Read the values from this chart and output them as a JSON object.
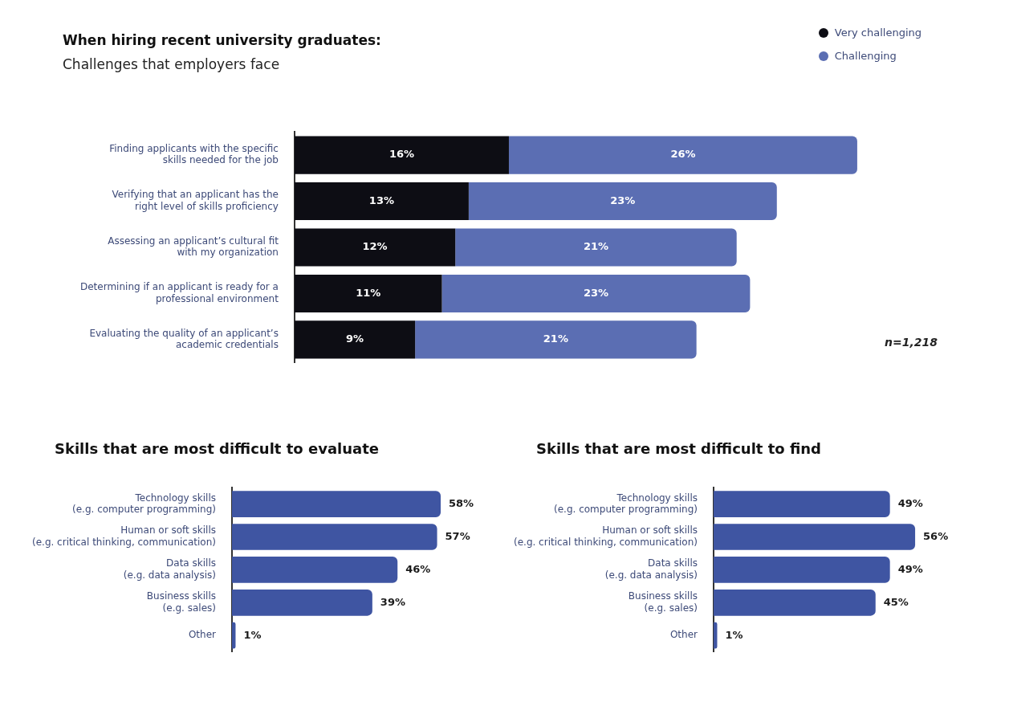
{
  "chart_data": [
    {
      "type": "bar",
      "orientation": "horizontal",
      "stacked": true,
      "title": "When hiring recent university graduates:",
      "subtitle": "Challenges that employers face",
      "categories": [
        "Finding applicants with the specific\nskills needed for the job",
        "Verifying that an applicant has the\nright level of skills proficiency",
        "Assessing an applicant’s cultural fit\nwith my organization",
        "Determining if an applicant is ready for a\nprofessional environment",
        "Evaluating the quality of an applicant’s\nacademic credentials"
      ],
      "series": [
        {
          "name": "Very challenging",
          "color": "#0d0d14",
          "values": [
            16,
            13,
            12,
            11,
            9
          ],
          "value_labels": [
            "16%",
            "13%",
            "12%",
            "11%",
            "9%"
          ]
        },
        {
          "name": "Challenging",
          "color": "#5b6eb3",
          "values": [
            26,
            23,
            21,
            23,
            21
          ],
          "value_labels": [
            "26%",
            "23%",
            "21%",
            "23%",
            "21%"
          ]
        }
      ],
      "legend": "top right",
      "tick_labels": "y",
      "annotations": [
        "n=1,218"
      ]
    },
    {
      "type": "bar",
      "orientation": "horizontal",
      "title": "Skills that are most difficult to evaluate",
      "categories": [
        "Technology skills\n(e.g. computer programming)",
        "Human or soft skills\n(e.g. critical thinking, communication)",
        "Data skills\n(e.g. data analysis)",
        "Business skills\n(e.g. sales)",
        "Other"
      ],
      "color": "#3f55a2",
      "values": [
        58,
        57,
        46,
        39,
        1
      ],
      "value_labels": [
        "58%",
        "57%",
        "46%",
        "39%",
        "1%"
      ],
      "tick_labels": "y"
    },
    {
      "type": "bar",
      "orientation": "horizontal",
      "title": "Skills that are most difficult to find",
      "categories": [
        "Technology skills\n(e.g. computer programming)",
        "Human or soft skills\n(e.g. critical thinking, communication)",
        "Data skills\n(e.g. data analysis)",
        "Business skills\n(e.g. sales)",
        "Other"
      ],
      "color": "#3f55a2",
      "values": [
        49,
        56,
        49,
        45,
        1
      ],
      "value_labels": [
        "49%",
        "56%",
        "49%",
        "45%",
        "1%"
      ],
      "tick_labels": "y"
    }
  ]
}
